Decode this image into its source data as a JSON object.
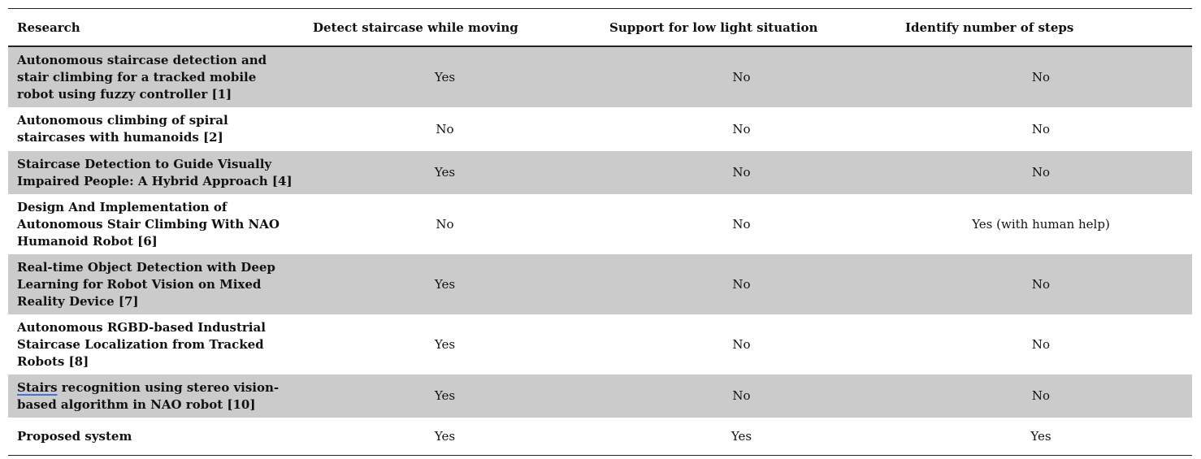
{
  "table": {
    "headers": [
      "Research",
      "Detect staircase while moving",
      "Support for low light situation",
      "Identify number of steps"
    ],
    "rows": [
      {
        "research": "Autonomous staircase detection and stair climbing for a tracked mobile robot using fuzzy controller [1]",
        "detect_moving": "Yes",
        "low_light": "No",
        "num_steps": "No"
      },
      {
        "research": "Autonomous climbing of spiral staircases with humanoids [2]",
        "detect_moving": "No",
        "low_light": "No",
        "num_steps": "No"
      },
      {
        "research": "Staircase Detection to Guide Visually Impaired People: A Hybrid Approach [4]",
        "detect_moving": "Yes",
        "low_light": "No",
        "num_steps": "No"
      },
      {
        "research": "Design And Implementation of Autonomous Stair Climbing With NAO Humanoid Robot [6]",
        "detect_moving": "No",
        "low_light": "No",
        "num_steps": "Yes (with human help)"
      },
      {
        "research": "Real-time Object Detection with Deep Learning for Robot Vision on Mixed Reality Device [7]",
        "detect_moving": "Yes",
        "low_light": "No",
        "num_steps": "No"
      },
      {
        "research": "Autonomous RGBD-based Industrial Staircase Localization from Tracked Robots [8]",
        "detect_moving": "Yes",
        "low_light": "No",
        "num_steps": "No"
      },
      {
        "research_flagged_word": "Stairs",
        "research_rest": " recognition using stereo vision-based algorithm in NAO robot [10]",
        "detect_moving": "Yes",
        "low_light": "No",
        "num_steps": "No"
      },
      {
        "research": "Proposed system",
        "detect_moving": "Yes",
        "low_light": "Yes",
        "num_steps": "Yes"
      }
    ]
  }
}
